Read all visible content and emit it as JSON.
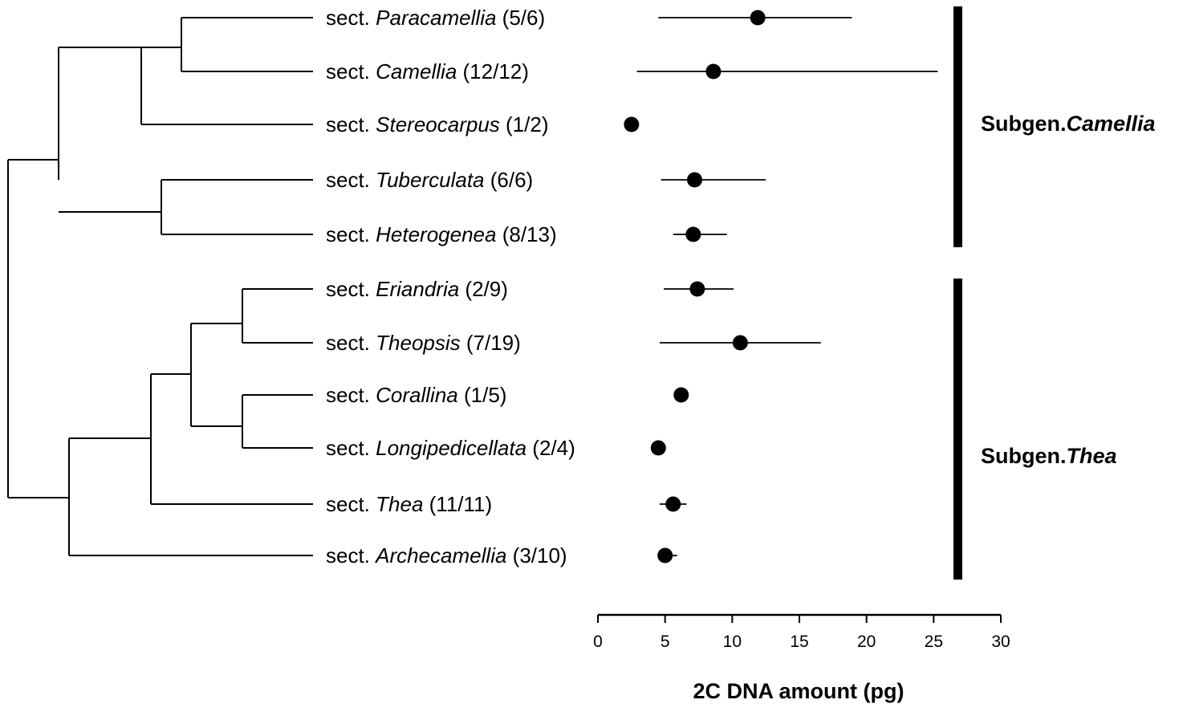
{
  "chart_data": {
    "type": "scatter",
    "title": "",
    "xlabel": "2C DNA amount (pg)",
    "ylabel": "",
    "xlim": [
      0,
      30
    ],
    "xticks": [
      "0",
      "5",
      "10",
      "15",
      "20",
      "25",
      "30"
    ],
    "grid": false,
    "error_bars": true,
    "points": [
      {
        "prefix": "sect. ",
        "name": "Paracamellia",
        "count": "(5/6)",
        "value": 11.9,
        "low": 4.5,
        "high": 18.9
      },
      {
        "prefix": "sect. ",
        "name": "Camellia",
        "count": "(12/12)",
        "value": 8.6,
        "low": 2.9,
        "high": 25.3
      },
      {
        "prefix": "sect. ",
        "name": "Stereocarpus",
        "count": "(1/2)",
        "value": 2.5,
        "low": 2.5,
        "high": 2.5
      },
      {
        "prefix": "sect. ",
        "name": "Tuberculata",
        "count": "(6/6)",
        "value": 7.2,
        "low": 4.7,
        "high": 12.5
      },
      {
        "prefix": "sect. ",
        "name": "Heterogenea",
        "count": "(8/13)",
        "value": 7.1,
        "low": 5.6,
        "high": 9.6
      },
      {
        "prefix": "sect. ",
        "name": "Eriandria",
        "count": "(2/9)",
        "value": 7.4,
        "low": 4.9,
        "high": 10.1
      },
      {
        "prefix": "sect. ",
        "name": "Theopsis",
        "count": "(7/19)",
        "value": 10.6,
        "low": 4.6,
        "high": 16.6
      },
      {
        "prefix": "sect. ",
        "name": "Corallina",
        "count": "(1/5)",
        "value": 6.2,
        "low": 6.2,
        "high": 6.2
      },
      {
        "prefix": "sect. ",
        "name": "Longipedicellata",
        "count": "(2/4)",
        "value": 4.5,
        "low": 4.5,
        "high": 4.5
      },
      {
        "prefix": "sect. ",
        "name": "Thea",
        "count": "(11/11)",
        "value": 5.6,
        "low": 4.6,
        "high": 6.6
      },
      {
        "prefix": "sect. ",
        "name": "Archecamellia",
        "count": "(3/10)",
        "value": 5.0,
        "low": 4.8,
        "high": 5.9
      }
    ],
    "tree": [
      {
        "from": "Paracamellia",
        "to": "Camellia"
      },
      {
        "from": "(Paracamellia,Camellia)",
        "to": "Stereocarpus"
      },
      {
        "from": "Tuberculata",
        "to": "Heterogenea"
      },
      {
        "from": "Eriandria",
        "to": "Theopsis"
      },
      {
        "from": "Corallina",
        "to": "Longipedicellata"
      }
    ],
    "groups": [
      {
        "prefix": "Subgen.",
        "name": "Camellia",
        "first": 0,
        "last": 4
      },
      {
        "prefix": "Subgen.",
        "name": "Thea",
        "first": 5,
        "last": 10
      }
    ]
  }
}
